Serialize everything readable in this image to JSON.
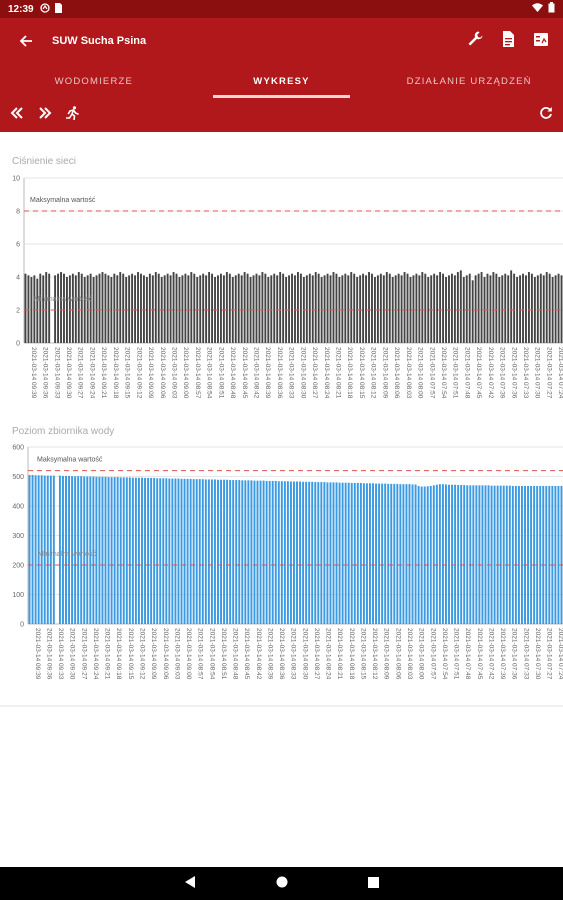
{
  "status_bar": {
    "time": "12:39"
  },
  "app_bar": {
    "title": "SUW Sucha Psina"
  },
  "tabs": [
    {
      "label": "WODOMIERZE",
      "active": false
    },
    {
      "label": "WYKRESY",
      "active": true
    },
    {
      "label": "DZIAŁANIE URZĄDZEŃ",
      "active": false
    }
  ],
  "colors": {
    "primary": "#b0181b",
    "status": "#8c0f0f",
    "bar_gray": "#444444",
    "bar_blue": "#3b9ae1",
    "limit_red": "#e05050"
  },
  "chart_data": [
    {
      "type": "bar",
      "title": "Ciśnienie sieci",
      "ylim": [
        0,
        10
      ],
      "yticks": [
        0,
        2,
        4,
        6,
        8,
        10
      ],
      "max_label": "Maksymalna wartość",
      "max_value": 8,
      "min_label": "Minimalna wartość",
      "min_value": 2,
      "x_tick_labels": [
        "2021-03-14 09:39",
        "2021-03-14 09:36",
        "2021-03-14 09:33",
        "2021-03-14 09:30",
        "2021-03-14 09:27",
        "2021-03-14 09:24",
        "2021-03-14 09:21",
        "2021-03-14 09:18",
        "2021-03-14 09:15",
        "2021-03-14 09:12",
        "2021-03-14 09:09",
        "2021-03-14 09:06",
        "2021-03-14 09:03",
        "2021-03-14 09:00",
        "2021-03-14 08:57",
        "2021-03-14 08:54",
        "2021-03-14 08:51",
        "2021-03-14 08:48",
        "2021-03-14 08:45",
        "2021-03-14 08:42",
        "2021-03-14 08:39",
        "2021-03-14 08:36",
        "2021-03-14 08:33",
        "2021-03-14 08:30",
        "2021-03-14 08:27",
        "2021-03-14 08:24",
        "2021-03-14 08:21",
        "2021-03-14 08:18",
        "2021-03-14 08:15",
        "2021-03-14 08:12",
        "2021-03-14 08:09",
        "2021-03-14 08:06",
        "2021-03-14 08:03",
        "2021-03-14 08:00",
        "2021-03-14 07:57",
        "2021-03-14 07:54",
        "2021-03-14 07:51",
        "2021-03-14 07:48",
        "2021-03-14 07:45",
        "2021-03-14 07:42",
        "2021-03-14 07:39",
        "2021-03-14 07:36",
        "2021-03-14 07:33",
        "2021-03-14 07:30",
        "2021-03-14 07:27",
        "2021-03-14 07:24"
      ],
      "values": [
        4.2,
        4.1,
        4.0,
        4.1,
        3.9,
        4.2,
        4.1,
        4.3,
        4.2,
        0,
        4.1,
        4.2,
        4.3,
        4.2,
        4.0,
        4.1,
        4.2,
        4.1,
        4.3,
        4.2,
        4.0,
        4.1,
        4.2,
        4.0,
        4.1,
        4.2,
        4.3,
        4.2,
        4.1,
        4.0,
        4.2,
        4.1,
        4.3,
        4.2,
        4.0,
        4.1,
        4.2,
        4.1,
        4.3,
        4.2,
        4.1,
        4.0,
        4.2,
        4.1,
        4.3,
        4.2,
        4.0,
        4.1,
        4.2,
        4.1,
        4.3,
        4.2,
        4.0,
        4.1,
        4.2,
        4.1,
        4.3,
        4.2,
        4.0,
        4.1,
        4.2,
        4.1,
        4.3,
        4.2,
        4.0,
        4.1,
        4.2,
        4.1,
        4.3,
        4.2,
        4.0,
        4.1,
        4.2,
        4.1,
        4.3,
        4.2,
        4.0,
        4.1,
        4.2,
        4.1,
        4.3,
        4.2,
        4.0,
        4.1,
        4.2,
        4.1,
        4.3,
        4.2,
        4.0,
        4.1,
        4.2,
        4.1,
        4.3,
        4.2,
        4.0,
        4.1,
        4.2,
        4.1,
        4.3,
        4.2,
        4.0,
        4.1,
        4.2,
        4.1,
        4.3,
        4.2,
        4.0,
        4.1,
        4.2,
        4.1,
        4.3,
        4.2,
        4.0,
        4.1,
        4.2,
        4.1,
        4.3,
        4.2,
        4.0,
        4.1,
        4.2,
        4.1,
        4.3,
        4.2,
        4.0,
        4.1,
        4.2,
        4.1,
        4.3,
        4.2,
        4.0,
        4.1,
        4.2,
        4.1,
        4.3,
        4.2,
        4.0,
        4.1,
        4.2,
        4.1,
        4.3,
        4.2,
        4.0,
        4.1,
        4.2,
        4.1,
        4.3,
        4.4,
        4.0,
        4.1,
        4.2,
        3.8,
        4.1,
        4.2,
        4.3,
        4.0,
        4.2,
        4.1,
        4.3,
        4.2,
        4.0,
        4.1,
        4.2,
        4.1,
        4.4,
        4.2,
        4.0,
        4.1,
        4.2,
        4.1,
        4.3,
        4.2,
        4.0,
        4.1,
        4.2,
        4.1,
        4.3,
        4.2,
        4.0,
        4.1,
        4.2,
        4.1
      ]
    },
    {
      "type": "bar",
      "title": "Poziom zbiornika wody",
      "ylim": [
        0,
        600
      ],
      "yticks": [
        0,
        100,
        200,
        300,
        400,
        500,
        600
      ],
      "max_label": "Maksymalna wartość",
      "max_value": 520,
      "min_label": "Minimalna wartość",
      "min_value": 200,
      "x_tick_labels": [
        "2021-03-14 09:39",
        "2021-03-14 09:36",
        "2021-03-14 09:33",
        "2021-03-14 09:30",
        "2021-03-14 09:27",
        "2021-03-14 09:24",
        "2021-03-14 09:21",
        "2021-03-14 09:18",
        "2021-03-14 09:15",
        "2021-03-14 09:12",
        "2021-03-14 09:09",
        "2021-03-14 09:06",
        "2021-03-14 09:03",
        "2021-03-14 09:00",
        "2021-03-14 08:57",
        "2021-03-14 08:54",
        "2021-03-14 08:51",
        "2021-03-14 08:48",
        "2021-03-14 08:45",
        "2021-03-14 08:42",
        "2021-03-14 08:39",
        "2021-03-14 08:36",
        "2021-03-14 08:33",
        "2021-03-14 08:30",
        "2021-03-14 08:27",
        "2021-03-14 08:24",
        "2021-03-14 08:21",
        "2021-03-14 08:18",
        "2021-03-14 08:15",
        "2021-03-14 08:12",
        "2021-03-14 08:09",
        "2021-03-14 08:06",
        "2021-03-14 08:03",
        "2021-03-14 08:00",
        "2021-03-14 07:57",
        "2021-03-14 07:54",
        "2021-03-14 07:51",
        "2021-03-14 07:48",
        "2021-03-14 07:45",
        "2021-03-14 07:42",
        "2021-03-14 07:39",
        "2021-03-14 07:36",
        "2021-03-14 07:33",
        "2021-03-14 07:30",
        "2021-03-14 07:27",
        "2021-03-14 07:24"
      ],
      "values": [
        505,
        505,
        504,
        504,
        504,
        503,
        503,
        503,
        503,
        0,
        503,
        502,
        502,
        502,
        501,
        501,
        501,
        501,
        500,
        500,
        500,
        500,
        499,
        499,
        499,
        499,
        498,
        498,
        498,
        498,
        497,
        497,
        497,
        497,
        496,
        496,
        496,
        496,
        495,
        495,
        495,
        495,
        494,
        494,
        494,
        494,
        493,
        493,
        493,
        493,
        492,
        492,
        492,
        492,
        491,
        491,
        491,
        491,
        490,
        490,
        490,
        490,
        489,
        489,
        489,
        489,
        488,
        488,
        488,
        488,
        487,
        487,
        487,
        487,
        486,
        486,
        486,
        486,
        485,
        485,
        485,
        485,
        484,
        484,
        484,
        484,
        483,
        483,
        483,
        483,
        482,
        482,
        482,
        482,
        481,
        481,
        481,
        481,
        480,
        480,
        480,
        480,
        479,
        479,
        479,
        479,
        478,
        478,
        478,
        478,
        477,
        477,
        477,
        477,
        476,
        476,
        476,
        476,
        475,
        475,
        475,
        475,
        474,
        474,
        474,
        474,
        473,
        473,
        468,
        466,
        466,
        467,
        468,
        470,
        472,
        474,
        474,
        473,
        472,
        472,
        472,
        471,
        471,
        471,
        470,
        470,
        470,
        470,
        470,
        470,
        470,
        470,
        469,
        469,
        469,
        469,
        469,
        469,
        469,
        468,
        468,
        468,
        468,
        468,
        468,
        468,
        468,
        468,
        468,
        468,
        468,
        468,
        468,
        468,
        468,
        468
      ]
    }
  ]
}
